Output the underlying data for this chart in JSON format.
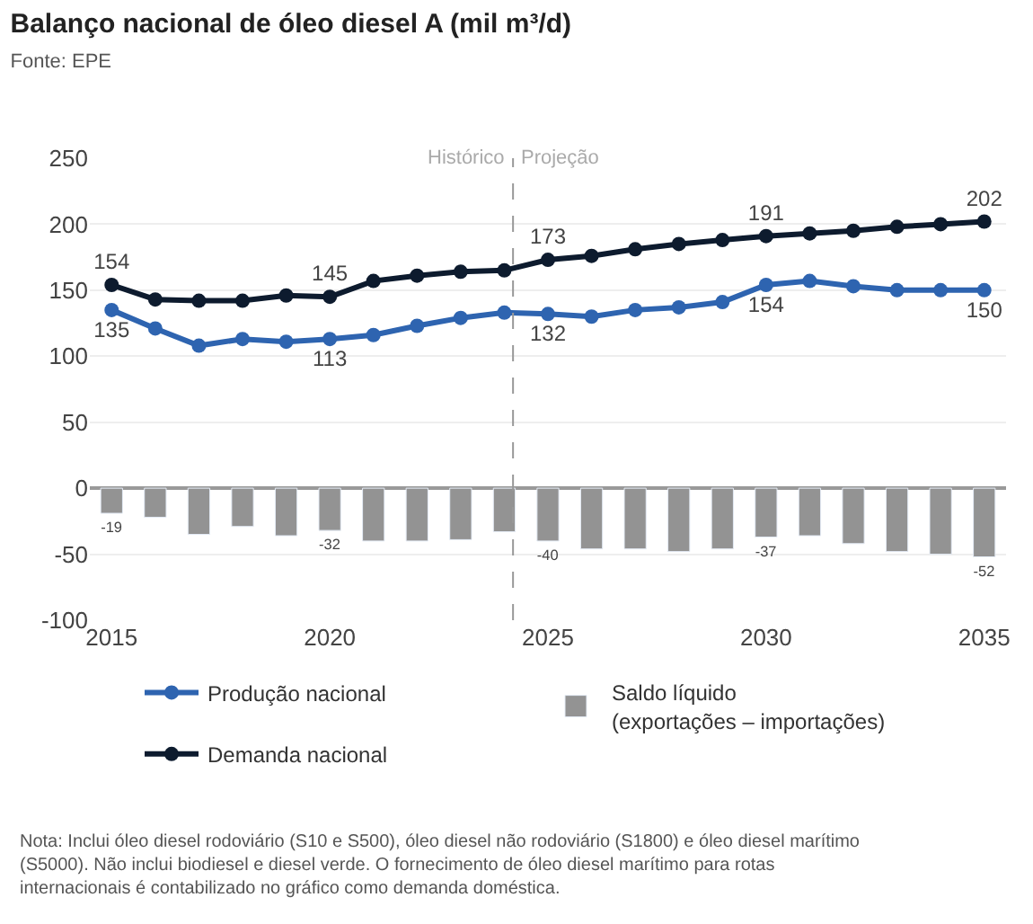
{
  "chart_data": {
    "type": "line",
    "title": "Balanço nacional de óleo diesel A (mil m³/d)",
    "subtitle": "Fonte: EPE",
    "x": [
      2015,
      2016,
      2017,
      2018,
      2019,
      2020,
      2021,
      2022,
      2023,
      2024,
      2025,
      2026,
      2027,
      2028,
      2029,
      2030,
      2031,
      2032,
      2033,
      2034,
      2035
    ],
    "series": [
      {
        "name": "Produção nacional",
        "color": "#2e64b0",
        "values": [
          135,
          121,
          108,
          113,
          111,
          113,
          116,
          123,
          129,
          133,
          132,
          130,
          135,
          137,
          141,
          154,
          157,
          153,
          150,
          150,
          150
        ],
        "value_labels": [
          "135",
          null,
          null,
          null,
          null,
          "113",
          null,
          null,
          null,
          null,
          "132",
          null,
          null,
          null,
          null,
          "154",
          null,
          null,
          null,
          null,
          "150"
        ]
      },
      {
        "name": "Saldo líquido\n(exportações – importações)",
        "color": "#939393",
        "type": "bar",
        "values": [
          -19,
          -22,
          -35,
          -29,
          -36,
          -32,
          -40,
          -40,
          -39,
          -33,
          -40,
          -46,
          -46,
          -48,
          -46,
          -37,
          -36,
          -42,
          -48,
          -50,
          -52
        ],
        "value_labels": [
          "-19",
          null,
          null,
          null,
          null,
          "-32",
          null,
          null,
          null,
          null,
          "-40",
          null,
          null,
          null,
          null,
          "-37",
          null,
          null,
          null,
          null,
          "-52"
        ]
      },
      {
        "name": "Demanda nacional",
        "color": "#0d1b2e",
        "values": [
          154,
          143,
          142,
          142,
          146,
          145,
          157,
          161,
          164,
          165,
          173,
          176,
          181,
          185,
          188,
          191,
          193,
          195,
          198,
          200,
          202
        ],
        "value_labels": [
          "154",
          null,
          null,
          null,
          null,
          "145",
          null,
          null,
          null,
          null,
          "173",
          null,
          null,
          null,
          null,
          "191",
          null,
          null,
          null,
          null,
          "202"
        ]
      }
    ],
    "xlim": [
      2014.5,
      2035.5
    ],
    "xticks": [
      2015,
      2020,
      2025,
      2030,
      2035
    ],
    "ylim": [
      -100,
      250
    ],
    "yticks": [
      -100,
      -50,
      0,
      50,
      100,
      150,
      200,
      250
    ],
    "ref_lines": [
      {
        "axis": "x",
        "value": 2024.2,
        "color": "#999999",
        "line_style": "dashed"
      }
    ],
    "annotations": [
      {
        "text": "Histórico",
        "x": 2024.1,
        "y": 250
      },
      {
        "text": "Projeção",
        "x": 2024.3,
        "y": 250
      },
      "Nota: Inclui óleo diesel rodoviário (S10 e S500), óleo diesel não rodoviário (S1800) e óleo diesel marítimo\n(S5000). Não inclui biodiesel e diesel verde. O fornecimento de óleo diesel marítimo para rotas\ninternacionais é contabilizado no gráfico como demanda doméstica."
    ],
    "grid": "y",
    "legend": "bottom",
    "marker": "circle",
    "line_style": "solid"
  }
}
